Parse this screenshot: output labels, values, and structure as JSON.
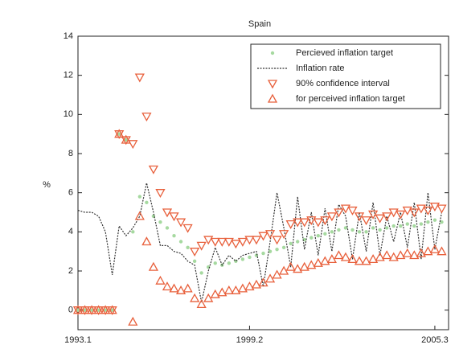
{
  "chart_data": {
    "type": "line",
    "title": "Spain",
    "y_label": "%",
    "x": [
      0,
      1,
      2,
      3,
      4,
      5,
      6,
      7,
      8,
      9,
      10,
      11,
      12,
      13,
      14,
      15,
      16,
      17,
      18,
      19,
      20,
      21,
      22,
      23,
      24,
      25,
      26,
      27,
      28,
      29,
      30,
      31,
      32,
      33,
      34,
      35,
      36,
      37,
      38,
      39,
      40,
      41,
      42,
      43,
      44,
      45,
      46,
      47,
      48,
      49,
      50,
      51,
      52,
      53
    ],
    "xlim": [
      0,
      54
    ],
    "xticks": [
      {
        "value": 0,
        "label": "1993.1"
      },
      {
        "value": 25,
        "label": "1999.2"
      },
      {
        "value": 52,
        "label": "2005.3"
      }
    ],
    "ylim": [
      -1,
      14
    ],
    "yticks": [
      0,
      2,
      4,
      6,
      8,
      10,
      12,
      14
    ],
    "legend": "upper-right",
    "series": [
      {
        "name": "Percieved inflation target",
        "color": "#a6d9a0",
        "marker": "dot",
        "values": [
          0,
          0,
          0,
          0,
          0,
          0,
          9,
          8.7,
          4,
          5.8,
          5.5,
          4.8,
          4.5,
          4.2,
          3.8,
          3.5,
          3.2,
          2.5,
          1.9,
          2.2,
          2.4,
          2.3,
          2.4,
          2.5,
          2.6,
          2.7,
          2.8,
          2.9,
          3.0,
          3.1,
          3.2,
          3.4,
          3.5,
          3.6,
          3.7,
          3.8,
          3.9,
          4.0,
          4.1,
          4.2,
          4.1,
          4.0,
          4.0,
          4.2,
          4.1,
          4.2,
          4.3,
          4.3,
          4.4,
          4.3,
          4.4,
          4.5,
          4.6,
          4.5
        ]
      },
      {
        "name": "Inflation rate",
        "color": "#333333",
        "marker": "dotted-line",
        "values": [
          5.1,
          5.0,
          5.0,
          4.8,
          4.0,
          1.8,
          4.3,
          3.8,
          4.2,
          4.8,
          6.5,
          5.0,
          3.3,
          3.3,
          3.0,
          2.9,
          2.5,
          2.3,
          0.4,
          2.0,
          3.2,
          2.3,
          2.8,
          2.5,
          2.8,
          2.9,
          3.0,
          1.2,
          3.5,
          6.0,
          4.2,
          2.2,
          5.8,
          3.1,
          5.0,
          2.8,
          5.2,
          3.0,
          5.4,
          4.8,
          2.6,
          5.0,
          3.0,
          5.5,
          2.8,
          4.8,
          3.5,
          5.0,
          3.2,
          5.5,
          2.6,
          6.0,
          3.1,
          5.0
        ]
      },
      {
        "name": "90% confidence interval",
        "color": "#e8603c",
        "marker": "triangle-down",
        "values": [
          0,
          0,
          0,
          0,
          0,
          0,
          9.0,
          8.7,
          8.5,
          11.9,
          9.9,
          7.2,
          6.0,
          5.0,
          4.8,
          4.5,
          4.2,
          3.0,
          3.3,
          3.6,
          3.5,
          3.5,
          3.5,
          3.4,
          3.5,
          3.6,
          3.6,
          3.8,
          3.9,
          3.6,
          3.9,
          4.4,
          4.5,
          4.5,
          4.6,
          4.5,
          4.6,
          4.8,
          5.0,
          5.2,
          5.1,
          4.8,
          4.6,
          4.9,
          4.7,
          4.8,
          5.0,
          4.9,
          5.1,
          5.0,
          5.2,
          5.1,
          5.3,
          5.2
        ]
      },
      {
        "name": "for perceived inflation target",
        "color": "#e8603c",
        "marker": "triangle-up",
        "values": [
          0,
          0,
          0,
          0,
          0,
          0,
          9.0,
          8.7,
          -0.6,
          4.8,
          3.5,
          2.2,
          1.5,
          1.2,
          1.1,
          1.0,
          1.1,
          0.6,
          0.3,
          0.6,
          0.8,
          0.9,
          1.0,
          1.0,
          1.1,
          1.2,
          1.3,
          1.4,
          1.6,
          1.8,
          2.0,
          2.2,
          2.1,
          2.2,
          2.3,
          2.4,
          2.5,
          2.6,
          2.8,
          2.7,
          2.6,
          2.5,
          2.5,
          2.6,
          2.7,
          2.8,
          2.7,
          2.8,
          2.9,
          2.8,
          2.9,
          3.0,
          3.1,
          3.0
        ]
      }
    ]
  }
}
